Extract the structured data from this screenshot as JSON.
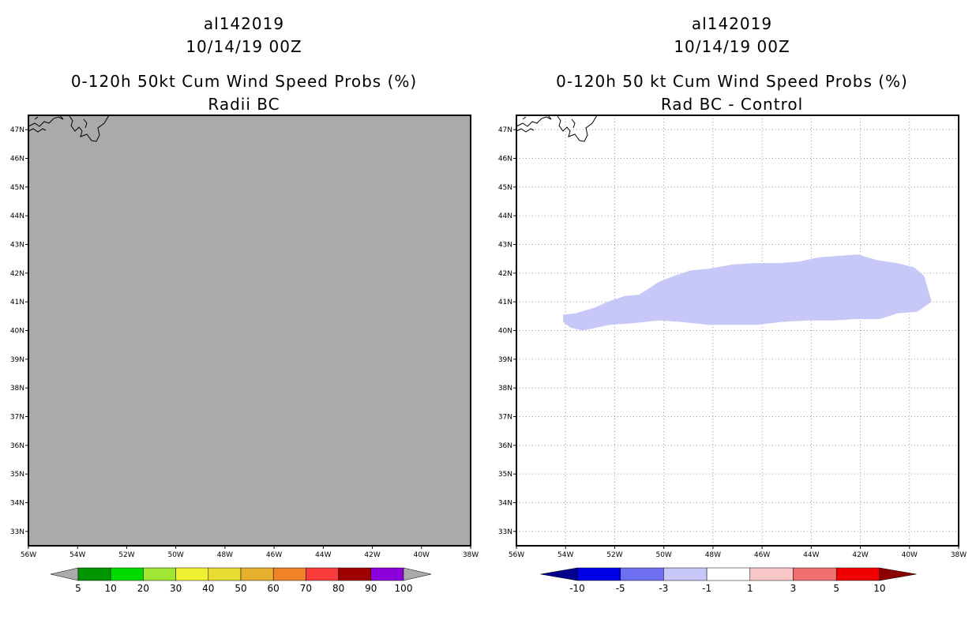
{
  "left_panel": {
    "header_line1": "al142019",
    "header_line2": "10/14/19 00Z",
    "title_line1": "0-120h 50kt Cum Wind Speed Probs (%)",
    "title_line2": "Radii BC"
  },
  "right_panel": {
    "header_line1": "al142019",
    "header_line2": "10/14/19 00Z",
    "title_line1": "0-120h 50 kt Cum Wind Speed Probs (%)",
    "title_line2": "Rad BC - Control"
  },
  "colors": {
    "left_background": "#aaaaaa",
    "right_background": "#ffffff",
    "difference_fill": "#c8c8f8"
  },
  "chart_data": [
    {
      "type": "heatmap",
      "title": "0-120h 50kt Cum Wind Speed Probs (%) Radii BC",
      "x_axis": {
        "range": [
          -56,
          -38
        ],
        "unit": "deg lon",
        "ticks": [
          -56,
          -54,
          -52,
          -50,
          -48,
          -46,
          -44,
          -42,
          -40,
          -38
        ],
        "tick_labels": [
          "56W",
          "54W",
          "52W",
          "50W",
          "48W",
          "46W",
          "44W",
          "42W",
          "40W",
          "38W"
        ]
      },
      "y_axis": {
        "range": [
          32.5,
          47.5
        ],
        "unit": "deg lat",
        "ticks": [
          33,
          34,
          35,
          36,
          37,
          38,
          39,
          40,
          41,
          42,
          43,
          44,
          45,
          46,
          47
        ],
        "tick_labels": [
          "33N",
          "34N",
          "35N",
          "36N",
          "37N",
          "38N",
          "39N",
          "40N",
          "41N",
          "42N",
          "43N",
          "44N",
          "45N",
          "46N",
          "47N"
        ]
      },
      "grid": false,
      "field": "probability below 5% everywhere (uniform grey)",
      "colorbar": {
        "labels": [
          "5",
          "10",
          "20",
          "30",
          "40",
          "50",
          "60",
          "70",
          "80",
          "90",
          "100"
        ],
        "colors": [
          "#009600",
          "#00dc00",
          "#a0e632",
          "#f0f032",
          "#e6dc32",
          "#e6af2d",
          "#f08228",
          "#fa3c3c",
          "#a00000",
          "#8c00dc"
        ],
        "under_color": "#aaaaaa",
        "over_color": "#aaaaaa"
      }
    },
    {
      "type": "heatmap",
      "title": "0-120h 50 kt Cum Wind Speed Probs (%) Rad BC - Control",
      "x_axis": {
        "range": [
          -56,
          -38
        ],
        "unit": "deg lon",
        "ticks": [
          -56,
          -54,
          -52,
          -50,
          -48,
          -46,
          -44,
          -42,
          -40,
          -38
        ],
        "tick_labels": [
          "56W",
          "54W",
          "52W",
          "50W",
          "48W",
          "46W",
          "44W",
          "42W",
          "40W",
          "38W"
        ]
      },
      "y_axis": {
        "range": [
          32.5,
          47.5
        ],
        "unit": "deg lat",
        "ticks": [
          33,
          34,
          35,
          36,
          37,
          38,
          39,
          40,
          41,
          42,
          43,
          44,
          45,
          46,
          47
        ],
        "tick_labels": [
          "33N",
          "34N",
          "35N",
          "36N",
          "37N",
          "38N",
          "39N",
          "40N",
          "41N",
          "42N",
          "43N",
          "44N",
          "45N",
          "46N",
          "47N"
        ]
      },
      "grid": true,
      "difference_region": {
        "range": "-3 to -1",
        "outline_lonlat": [
          [
            -54.1,
            40.55
          ],
          [
            -53.6,
            40.6
          ],
          [
            -52.8,
            40.8
          ],
          [
            -52.3,
            41.0
          ],
          [
            -51.6,
            41.2
          ],
          [
            -51.0,
            41.25
          ],
          [
            -50.2,
            41.7
          ],
          [
            -49.6,
            41.9
          ],
          [
            -48.9,
            42.1
          ],
          [
            -48.2,
            42.15
          ],
          [
            -47.2,
            42.3
          ],
          [
            -46.3,
            42.35
          ],
          [
            -45.3,
            42.35
          ],
          [
            -44.5,
            42.4
          ],
          [
            -43.7,
            42.55
          ],
          [
            -42.9,
            42.6
          ],
          [
            -42.1,
            42.65
          ],
          [
            -41.3,
            42.45
          ],
          [
            -40.5,
            42.35
          ],
          [
            -39.8,
            42.2
          ],
          [
            -39.4,
            41.9
          ],
          [
            -39.1,
            41.0
          ],
          [
            -39.7,
            40.65
          ],
          [
            -40.5,
            40.6
          ],
          [
            -41.2,
            40.4
          ],
          [
            -42.2,
            40.4
          ],
          [
            -43.1,
            40.35
          ],
          [
            -44.1,
            40.35
          ],
          [
            -45.2,
            40.3
          ],
          [
            -46.2,
            40.2
          ],
          [
            -47.2,
            40.2
          ],
          [
            -48.2,
            40.2
          ],
          [
            -49.3,
            40.3
          ],
          [
            -50.2,
            40.35
          ],
          [
            -51.3,
            40.25
          ],
          [
            -52.2,
            40.2
          ],
          [
            -53.3,
            40.0
          ],
          [
            -53.8,
            40.1
          ],
          [
            -54.1,
            40.3
          ]
        ]
      },
      "colorbar": {
        "labels": [
          "-10",
          "-5",
          "-3",
          "-1",
          "1",
          "3",
          "5",
          "10"
        ],
        "colors": [
          "#0000e6",
          "#6e6ef0",
          "#c8c8f8",
          "#ffffff",
          "#f8c8c8",
          "#f07070",
          "#f00000"
        ],
        "under_color": "#00008c",
        "over_color": "#8c0000"
      }
    }
  ]
}
